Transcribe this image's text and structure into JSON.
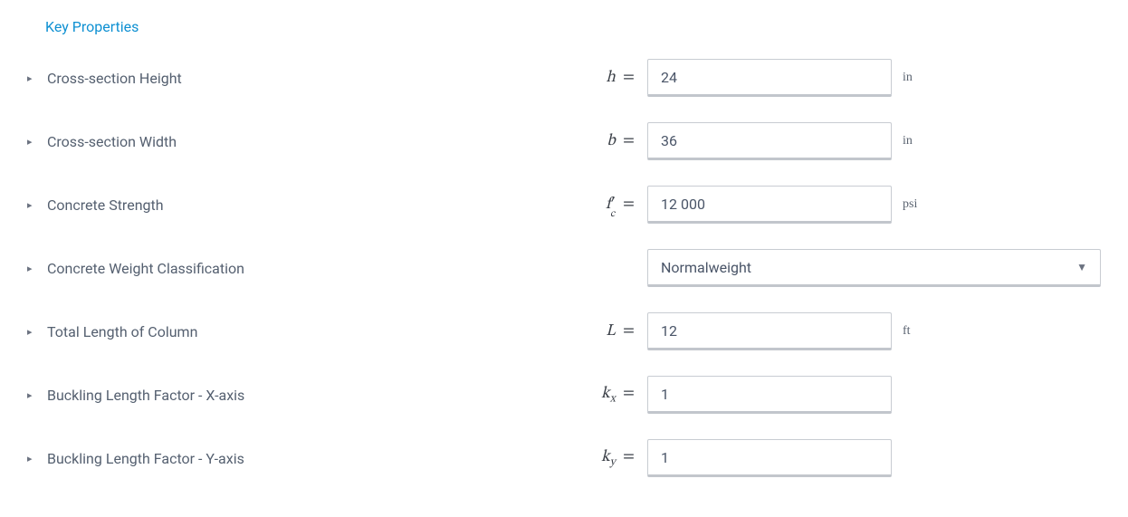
{
  "section": {
    "title": "Key Properties"
  },
  "properties": {
    "height": {
      "label": "Cross-section Height",
      "symbol_base": "h",
      "symbol_sub": "",
      "symbol_sup": "",
      "value": "24",
      "unit": "in",
      "type": "number"
    },
    "width": {
      "label": "Cross-section Width",
      "symbol_base": "b",
      "symbol_sub": "",
      "symbol_sup": "",
      "value": "36",
      "unit": "in",
      "type": "number"
    },
    "fc": {
      "label": "Concrete Strength",
      "symbol_base": "f",
      "symbol_sub": "c",
      "symbol_sup": "′",
      "value": "12 000",
      "unit": "psi",
      "type": "number"
    },
    "weight": {
      "label": "Concrete Weight Classification",
      "symbol_base": "",
      "symbol_sub": "",
      "symbol_sup": "",
      "value": "Normalweight",
      "unit": "",
      "type": "select"
    },
    "length": {
      "label": "Total Length of Column",
      "symbol_base": "L",
      "symbol_sub": "",
      "symbol_sup": "",
      "value": "12",
      "unit": "ft",
      "type": "number"
    },
    "kx": {
      "label": "Buckling Length Factor - X-axis",
      "symbol_base": "k",
      "symbol_sub": "x",
      "symbol_sup": "",
      "value": "1",
      "unit": "",
      "type": "number"
    },
    "ky": {
      "label": "Buckling Length Factor - Y-axis",
      "symbol_base": "k",
      "symbol_sub": "y",
      "symbol_sup": "",
      "value": "1",
      "unit": "",
      "type": "number"
    }
  },
  "colors": {
    "accent": "#0e90d2",
    "text": "#4a5568",
    "border": "#c8ccd2",
    "border_bottom": "#c2c6cc"
  }
}
